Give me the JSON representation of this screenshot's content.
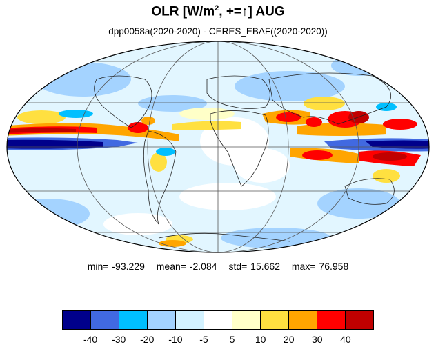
{
  "title": {
    "main": "OLR [W/m",
    "sup": "2",
    "rest": ", +=↑] AUG"
  },
  "subtitle": "dpp0058a(2020-2020) - CERES_EBAF((2020-2020))",
  "stats": {
    "min": "min= -93.229",
    "mean": "mean=  -2.084",
    "std": "std=  15.662",
    "max": "max=  76.958"
  },
  "colorbar": {
    "colors": [
      "#00008b",
      "#4169e1",
      "#00bfff",
      "#a4d3ff",
      "#d3f2ff",
      "#ffffff",
      "#ffffc8",
      "#ffe040",
      "#ffa500",
      "#ff0000",
      "#c00000"
    ],
    "labels": [
      "-40",
      "-30",
      "-20",
      "-10",
      "-5",
      "5",
      "10",
      "20",
      "30",
      "40"
    ]
  },
  "map": {
    "projection": "mollweide",
    "gridlines": true,
    "coastlines": true,
    "features": [
      {
        "name": "tropical-pacific-negative-band",
        "color": "#00008b"
      },
      {
        "name": "itcz-positive-band",
        "color": "#ff0000"
      },
      {
        "name": "indian-monsoon-positive",
        "color": "#ff0000"
      },
      {
        "name": "maritime-continent-positive",
        "color": "#c00000"
      }
    ]
  }
}
